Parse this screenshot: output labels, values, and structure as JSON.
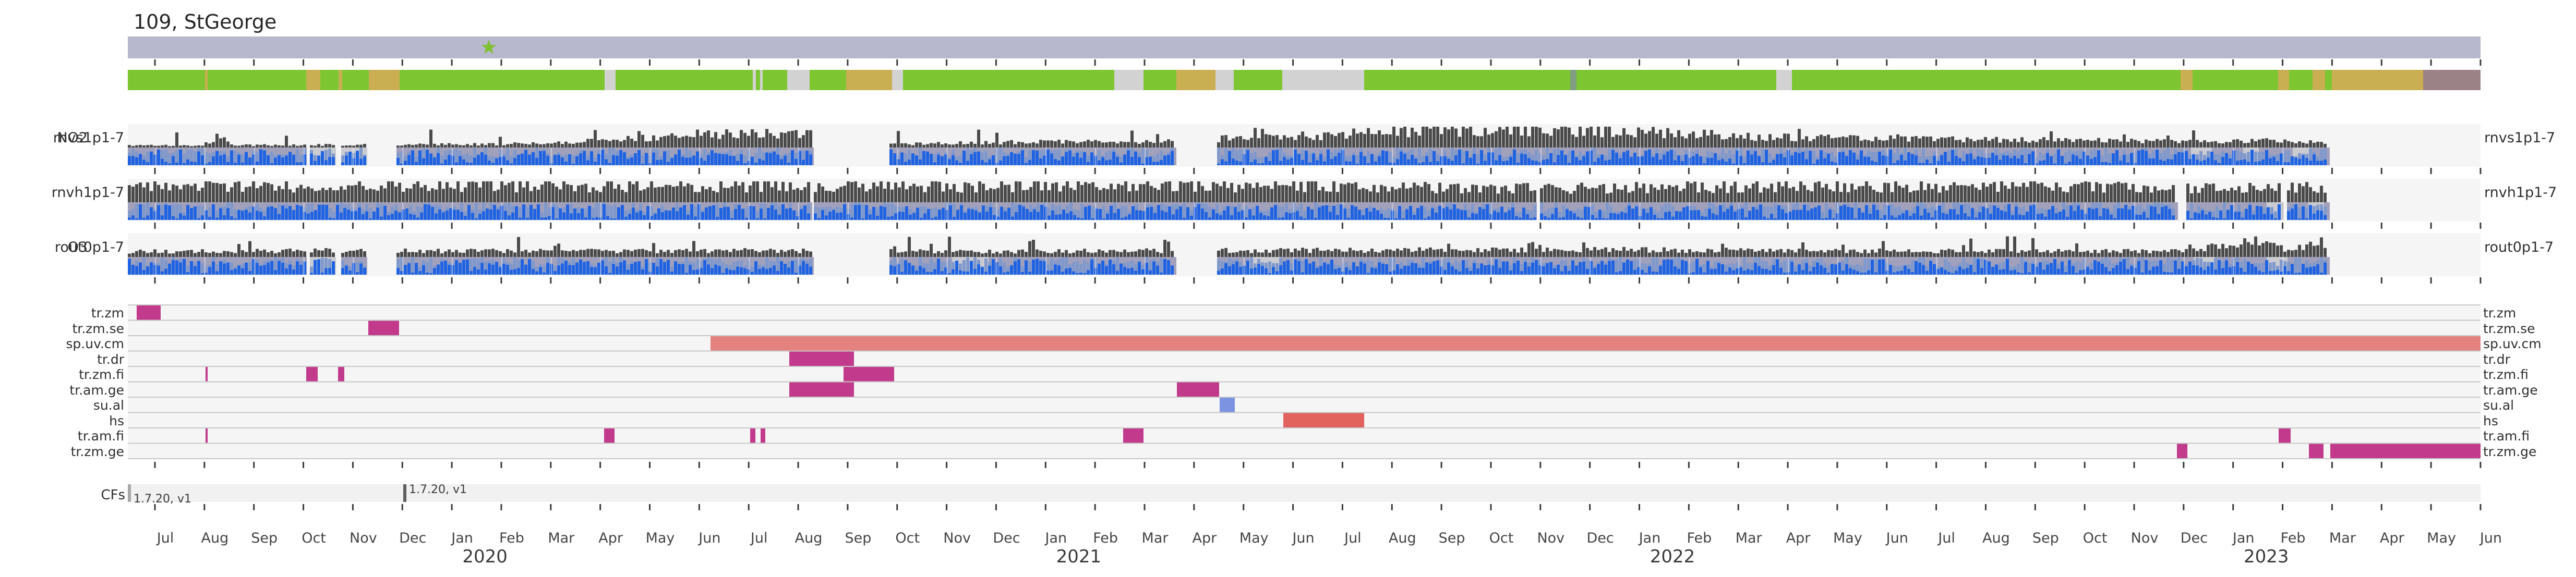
{
  "title": "109, StGeorge",
  "station_label": "StGeorge",
  "colors": {
    "green": "#7dc632",
    "tan": "#c9ae52",
    "gray": "#d2d2d2",
    "mauve": "#9b8286",
    "sage": "#7f9d80",
    "header_bar": "#b7b7cd",
    "star": "#7fc131",
    "strip": "#f5f5f5",
    "dark_bar": "#4a4a4a",
    "lavender": "#a2a1bc",
    "soft_blue": "#8099cc",
    "bright_blue": "#1d63e3",
    "gray_patch": "#cbcbd2",
    "grid": "#c8c8c8",
    "magenta": "#c23a8c",
    "salmon": "#e4827f",
    "red_salmon": "#e2625d",
    "blue": "#7b93e0",
    "tick": "#3a3a3a",
    "cf_band": "#f1f1f1",
    "cf_marker_light": "#a8a8a8",
    "cf_marker_dark": "#5f5f5f",
    "axis_text": "#444444"
  },
  "chart_data": {
    "type": "availability-timeline",
    "station": {
      "id": "109",
      "name": "StGeorge"
    },
    "x_axis": {
      "start": "2019-06-19",
      "end": "2023-06-01",
      "plot_units_width": 4510,
      "first_tick_u": 52,
      "month_pitch_u": 94.85,
      "month_labels": [
        "Jul",
        "Aug",
        "Sep",
        "Oct",
        "Nov",
        "Dec",
        "Jan",
        "Feb",
        "Mar",
        "Apr",
        "May",
        "Jun",
        "Jul",
        "Aug",
        "Sep",
        "Oct",
        "Nov",
        "Dec",
        "Jan",
        "Feb",
        "Mar",
        "Apr",
        "May",
        "Jun",
        "Jul",
        "Aug",
        "Sep",
        "Oct",
        "Nov",
        "Dec",
        "Jan",
        "Feb",
        "Mar",
        "Apr",
        "May",
        "Jun",
        "Jul",
        "Aug",
        "Sep",
        "Oct",
        "Nov",
        "Dec",
        "Jan",
        "Feb",
        "Mar",
        "Apr",
        "May",
        "Jun"
      ],
      "year_labels": [
        {
          "label": "2020",
          "jan_month_index": 6
        },
        {
          "label": "2021",
          "jan_month_index": 18
        },
        {
          "label": "2022",
          "jan_month_index": 30
        },
        {
          "label": "2023",
          "jan_month_index": 42
        }
      ]
    },
    "header_marker": {
      "shape": "star",
      "color_key": "star",
      "u": 692
    },
    "quality_segments": [
      [
        0,
        148,
        "green"
      ],
      [
        148,
        153,
        "tan"
      ],
      [
        153,
        342,
        "green"
      ],
      [
        342,
        369,
        "tan"
      ],
      [
        369,
        404,
        "green"
      ],
      [
        404,
        411,
        "tan"
      ],
      [
        411,
        462,
        "green"
      ],
      [
        462,
        521,
        "tan"
      ],
      [
        521,
        914,
        "green"
      ],
      [
        914,
        935,
        "gray"
      ],
      [
        935,
        1198,
        "green"
      ],
      [
        1198,
        1204,
        "gray"
      ],
      [
        1204,
        1212,
        "green"
      ],
      [
        1212,
        1217,
        "gray"
      ],
      [
        1217,
        1264,
        "green"
      ],
      [
        1264,
        1307,
        "gray"
      ],
      [
        1307,
        1377,
        "green"
      ],
      [
        1377,
        1465,
        "tan"
      ],
      [
        1465,
        1486,
        "gray"
      ],
      [
        1486,
        1891,
        "green"
      ],
      [
        1891,
        1947,
        "gray"
      ],
      [
        1947,
        2010,
        "green"
      ],
      [
        2010,
        2085,
        "tan"
      ],
      [
        2085,
        2120,
        "gray"
      ],
      [
        2120,
        2213,
        "green"
      ],
      [
        2213,
        2370,
        "gray"
      ],
      [
        2370,
        2765,
        "green"
      ],
      [
        2765,
        2777,
        "sage"
      ],
      [
        2777,
        3160,
        "green"
      ],
      [
        3160,
        3190,
        "gray"
      ],
      [
        3190,
        3935,
        "green"
      ],
      [
        3935,
        3958,
        "tan"
      ],
      [
        3958,
        4122,
        "green"
      ],
      [
        4122,
        4143,
        "tan"
      ],
      [
        4143,
        4188,
        "green"
      ],
      [
        4188,
        4212,
        "tan"
      ],
      [
        4212,
        4225,
        "green"
      ],
      [
        4225,
        4400,
        "tan"
      ],
      [
        4400,
        4510,
        "mauve"
      ]
    ],
    "signal_rows": [
      {
        "pollutant": "NO2",
        "channel": "rnvs1p1-7",
        "right_label": "rnvs1p1-7",
        "seed": 11,
        "coverage": [
          [
            0,
            343
          ],
          [
            349,
            399
          ],
          [
            409,
            459
          ],
          [
            515,
            1315
          ],
          [
            1460,
            2010
          ],
          [
            2088,
            4221
          ]
        ],
        "gray_patches": [
          [
            349,
            399
          ],
          [
            409,
            459
          ],
          [
            3955,
            3995
          ],
          [
            4055,
            4085
          ],
          [
            4150,
            4185
          ]
        ],
        "dark_envelope": [
          [
            0,
            0.12
          ],
          [
            140,
            0.1
          ],
          [
            170,
            0.55
          ],
          [
            200,
            0.12
          ],
          [
            480,
            0.14
          ],
          [
            700,
            0.18
          ],
          [
            850,
            0.28
          ],
          [
            1000,
            0.55
          ],
          [
            1100,
            0.75
          ],
          [
            1315,
            0.65
          ],
          [
            1460,
            0.18
          ],
          [
            1700,
            0.28
          ],
          [
            2010,
            0.32
          ],
          [
            2090,
            0.45
          ],
          [
            2300,
            0.65
          ],
          [
            2500,
            0.95
          ],
          [
            2900,
            0.85
          ],
          [
            3100,
            0.55
          ],
          [
            3400,
            0.45
          ],
          [
            3700,
            0.38
          ],
          [
            3950,
            0.3
          ],
          [
            4100,
            0.35
          ],
          [
            4221,
            0.25
          ]
        ]
      },
      {
        "pollutant": "",
        "channel": "rnvh1p1-7",
        "right_label": "rnvh1p1-7",
        "seed": 23,
        "coverage": [
          [
            0,
            1312
          ],
          [
            1315,
            2701
          ],
          [
            2707,
            3930
          ],
          [
            3946,
            4132
          ],
          [
            4139,
            4221
          ]
        ],
        "gray_patches": [
          [
            4100,
            4131
          ],
          [
            4180,
            4210
          ]
        ],
        "dark_envelope": [
          [
            0,
            0.8
          ],
          [
            600,
            0.85
          ],
          [
            1200,
            0.82
          ],
          [
            1800,
            0.85
          ],
          [
            2400,
            0.8
          ],
          [
            2700,
            0.72
          ],
          [
            3000,
            0.8
          ],
          [
            3600,
            0.85
          ],
          [
            4000,
            0.7
          ],
          [
            4221,
            0.75
          ]
        ]
      },
      {
        "pollutant": "O3",
        "channel": "rout0p1-7",
        "right_label": "rout0p1-7",
        "seed": 37,
        "coverage": [
          [
            0,
            343
          ],
          [
            349,
            399
          ],
          [
            409,
            459
          ],
          [
            515,
            1315
          ],
          [
            1460,
            2010
          ],
          [
            2088,
            4221
          ]
        ],
        "gray_patches": [
          [
            349,
            399
          ],
          [
            1580,
            1650
          ],
          [
            2150,
            2210
          ],
          [
            3960,
            4000
          ],
          [
            4100,
            4140
          ]
        ],
        "dark_envelope": [
          [
            0,
            0.28
          ],
          [
            400,
            0.33
          ],
          [
            800,
            0.3
          ],
          [
            1200,
            0.33
          ],
          [
            1600,
            0.28
          ],
          [
            2000,
            0.33
          ],
          [
            2400,
            0.35
          ],
          [
            2800,
            0.38
          ],
          [
            3200,
            0.32
          ],
          [
            3600,
            0.3
          ],
          [
            3950,
            0.33
          ],
          [
            4080,
            0.85
          ],
          [
            4140,
            0.35
          ],
          [
            4200,
            0.8
          ],
          [
            4221,
            0.3
          ]
        ]
      }
    ],
    "gantt_rows": [
      {
        "label": "tr.zm",
        "bars": [
          {
            "u0": 17,
            "u1": 63,
            "color": "magenta",
            "approx": "2019-06-20/2019-07-04"
          }
        ]
      },
      {
        "label": "tr.zm.se",
        "bars": [
          {
            "u0": 461,
            "u1": 520,
            "color": "magenta",
            "approx": "2019-11-10/2019-11-28"
          }
        ]
      },
      {
        "label": "sp.uv.cm",
        "bars": [
          {
            "u0": 1117,
            "u1": 4510,
            "color": "salmon",
            "approx": "2020-06-12/2023-06-01"
          }
        ]
      },
      {
        "label": "tr.dr",
        "bars": [
          {
            "u0": 1268,
            "u1": 1392,
            "color": "magenta",
            "approx": "2020-07-26/2020-09-03"
          }
        ]
      },
      {
        "label": "tr.zm.fi",
        "bars": [
          {
            "u0": 149,
            "u1": 153,
            "color": "magenta",
            "approx": "2019-08-01"
          },
          {
            "u0": 342,
            "u1": 364,
            "color": "magenta",
            "approx": "2019-10-03/2019-10-10"
          },
          {
            "u0": 403,
            "u1": 415,
            "color": "magenta",
            "approx": "2019-10-22/2019-10-26"
          },
          {
            "u0": 1372,
            "u1": 1469,
            "color": "magenta",
            "approx": "2020-08-28/2020-09-28"
          }
        ]
      },
      {
        "label": "tr.am.ge",
        "bars": [
          {
            "u0": 1268,
            "u1": 1392,
            "color": "magenta",
            "approx": "2020-07-26/2020-09-03"
          },
          {
            "u0": 2011,
            "u1": 2092,
            "color": "magenta",
            "approx": "2021-03-18/2021-04-13"
          }
        ]
      },
      {
        "label": "su.al",
        "bars": [
          {
            "u0": 2093,
            "u1": 2122,
            "color": "blue",
            "approx": "2021-04-13/2021-04-22"
          }
        ]
      },
      {
        "label": "hs",
        "bars": [
          {
            "u0": 2215,
            "u1": 2370,
            "color": "red_salmon",
            "approx": "2021-05-22/2021-07-10"
          }
        ]
      },
      {
        "label": "tr.am.fi",
        "bars": [
          {
            "u0": 149,
            "u1": 153,
            "color": "magenta",
            "approx": "2019-08-01"
          },
          {
            "u0": 913,
            "u1": 933,
            "color": "magenta",
            "approx": "2020-04-03/2020-04-09"
          },
          {
            "u0": 1193,
            "u1": 1203,
            "color": "magenta",
            "approx": "2020-07-02/2020-07-05"
          },
          {
            "u0": 1213,
            "u1": 1222,
            "color": "magenta",
            "approx": "2020-07-08/2020-07-11"
          },
          {
            "u0": 1908,
            "u1": 1947,
            "color": "magenta",
            "approx": "2021-02-14/2021-02-27"
          },
          {
            "u0": 4123,
            "u1": 4146,
            "color": "magenta",
            "approx": "2023-02-12/2023-02-19"
          }
        ]
      },
      {
        "label": "tr.zm.ge",
        "bars": [
          {
            "u0": 3928,
            "u1": 3948,
            "color": "magenta",
            "approx": "2022-12-10/2022-12-17"
          },
          {
            "u0": 4181,
            "u1": 4209,
            "color": "magenta",
            "approx": "2023-03-02/2023-03-11"
          },
          {
            "u0": 4222,
            "u1": 4510,
            "color": "magenta",
            "approx": "2023-03-15/2023-06-01"
          }
        ]
      }
    ],
    "cfs": {
      "label": "CFs",
      "markers": [
        {
          "u": 0,
          "label": "1.7.20, v1",
          "text_below": true,
          "marker_color_key": "cf_marker_light"
        },
        {
          "u": 528,
          "label": "1.7.20, v1",
          "text_below": false,
          "marker_color_key": "cf_marker_dark"
        }
      ]
    }
  }
}
